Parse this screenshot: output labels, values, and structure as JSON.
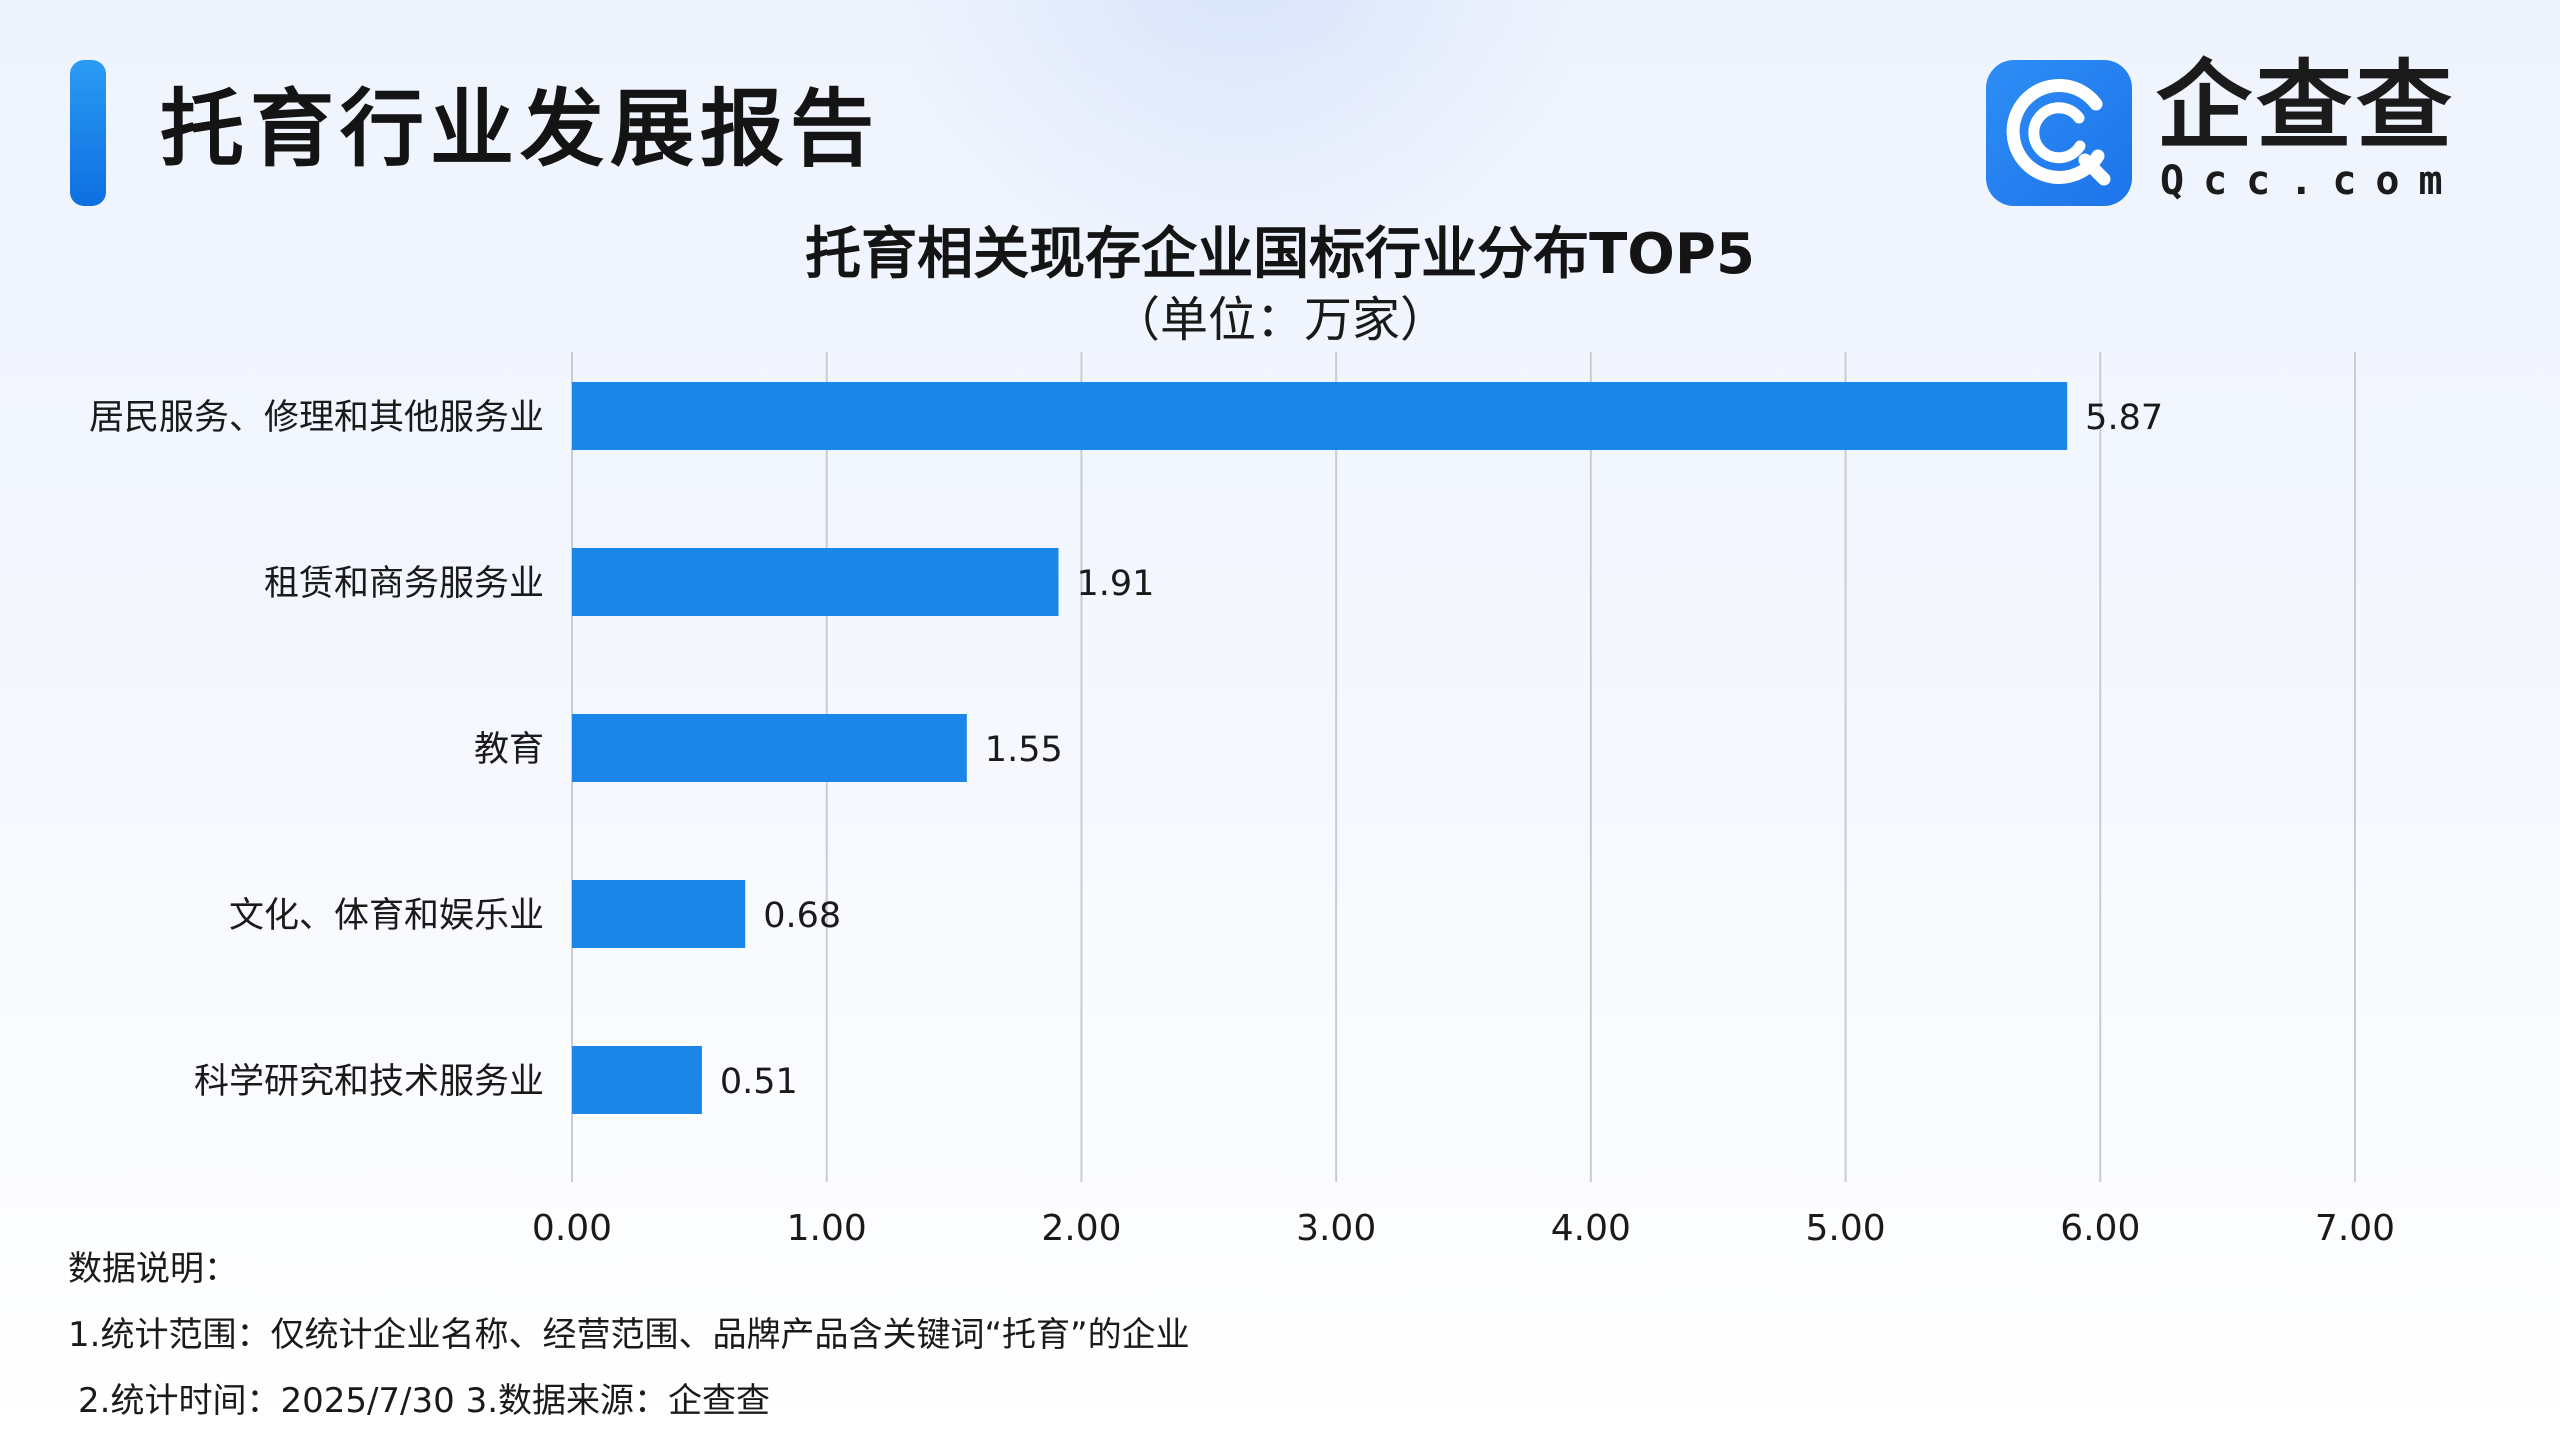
{
  "header": {
    "report_title": "托育行业发展报告",
    "logo_cn": "企查查",
    "logo_en": "Qcc.com"
  },
  "colors": {
    "accent": "#1a86e8",
    "bar": "#1a86e8",
    "grid": "#c9ccd3"
  },
  "chart_data": {
    "type": "bar",
    "orientation": "horizontal",
    "title": "托育相关现存企业国标行业分布TOP5",
    "subtitle": "（单位：万家）",
    "categories": [
      "居民服务、修理和其他服务业",
      "租赁和商务服务业",
      "教育",
      "文化、体育和娱乐业",
      "科学研究和技术服务业"
    ],
    "values": [
      5.87,
      1.91,
      1.55,
      0.68,
      0.51
    ],
    "value_labels": [
      "5.87",
      "1.91",
      "1.55",
      "0.68",
      "0.51"
    ],
    "xlim": [
      0,
      7
    ],
    "xticks": [
      0,
      1,
      2,
      3,
      4,
      5,
      6,
      7
    ],
    "xtick_labels": [
      "0.00",
      "1.00",
      "2.00",
      "3.00",
      "4.00",
      "5.00",
      "6.00",
      "7.00"
    ],
    "grid": true,
    "legend": "none"
  },
  "notes": {
    "heading": "数据说明：",
    "line1": "1.统计范围：仅统计企业名称、经营范围、品牌产品含关键词“托育”的企业",
    "line2": "2.统计时间：2025/7/30 3.数据来源：企查查"
  }
}
